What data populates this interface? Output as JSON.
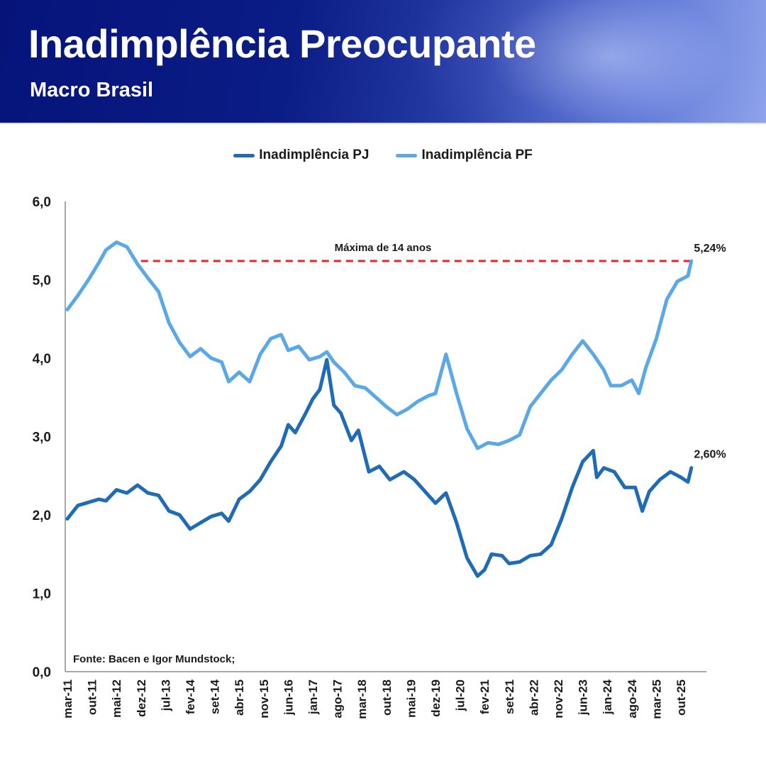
{
  "header": {
    "title": "Inadimplência Preocupante",
    "subtitle": "Macro Brasil"
  },
  "chart_data": {
    "type": "line",
    "title": "",
    "xlabel": "",
    "ylabel": "",
    "ylim": [
      0,
      6
    ],
    "y_ticks": [
      "0,0",
      "1,0",
      "2,0",
      "3,0",
      "4,0",
      "5,0",
      "6,0"
    ],
    "x_ticks": [
      "mar-11",
      "out-11",
      "mai-12",
      "dez-12",
      "jul-13",
      "fev-14",
      "set-14",
      "abr-15",
      "nov-15",
      "jun-16",
      "jan-17",
      "ago-17",
      "mar-18",
      "out-18",
      "mai-19",
      "dez-19",
      "jul-20",
      "fev-21",
      "set-21",
      "abr-22",
      "nov-22",
      "jun-23",
      "jan-24",
      "ago-24",
      "mar-25",
      "out-25"
    ],
    "grid": false,
    "legend_position": "top",
    "series": [
      {
        "name": "Inadimplência PJ",
        "color": "#1f6bb5",
        "points": [
          [
            "2011-03",
            1.95
          ],
          [
            "2011-06",
            2.12
          ],
          [
            "2011-09",
            2.16
          ],
          [
            "2011-12",
            2.2
          ],
          [
            "2012-02",
            2.18
          ],
          [
            "2012-05",
            2.32
          ],
          [
            "2012-08",
            2.28
          ],
          [
            "2012-11",
            2.38
          ],
          [
            "2013-02",
            2.28
          ],
          [
            "2013-05",
            2.25
          ],
          [
            "2013-08",
            2.05
          ],
          [
            "2013-11",
            2.0
          ],
          [
            "2014-02",
            1.82
          ],
          [
            "2014-05",
            1.9
          ],
          [
            "2014-08",
            1.98
          ],
          [
            "2014-11",
            2.02
          ],
          [
            "2015-01",
            1.92
          ],
          [
            "2015-04",
            2.2
          ],
          [
            "2015-07",
            2.3
          ],
          [
            "2015-10",
            2.45
          ],
          [
            "2016-01",
            2.68
          ],
          [
            "2016-04",
            2.88
          ],
          [
            "2016-06",
            3.15
          ],
          [
            "2016-08",
            3.05
          ],
          [
            "2016-11",
            3.3
          ],
          [
            "2017-01",
            3.48
          ],
          [
            "2017-03",
            3.6
          ],
          [
            "2017-05",
            3.98
          ],
          [
            "2017-07",
            3.4
          ],
          [
            "2017-09",
            3.3
          ],
          [
            "2017-12",
            2.95
          ],
          [
            "2018-02",
            3.08
          ],
          [
            "2018-05",
            2.55
          ],
          [
            "2018-08",
            2.62
          ],
          [
            "2018-11",
            2.45
          ],
          [
            "2019-03",
            2.55
          ],
          [
            "2019-06",
            2.45
          ],
          [
            "2019-09",
            2.3
          ],
          [
            "2019-12",
            2.15
          ],
          [
            "2020-03",
            2.28
          ],
          [
            "2020-06",
            1.9
          ],
          [
            "2020-09",
            1.45
          ],
          [
            "2020-12",
            1.22
          ],
          [
            "2021-02",
            1.3
          ],
          [
            "2021-04",
            1.5
          ],
          [
            "2021-07",
            1.48
          ],
          [
            "2021-09",
            1.38
          ],
          [
            "2021-12",
            1.4
          ],
          [
            "2022-03",
            1.48
          ],
          [
            "2022-06",
            1.5
          ],
          [
            "2022-09",
            1.62
          ],
          [
            "2022-12",
            1.95
          ],
          [
            "2023-03",
            2.35
          ],
          [
            "2023-06",
            2.68
          ],
          [
            "2023-09",
            2.82
          ],
          [
            "2023-10",
            2.48
          ],
          [
            "2023-12",
            2.6
          ],
          [
            "2024-03",
            2.55
          ],
          [
            "2024-06",
            2.35
          ],
          [
            "2024-09",
            2.35
          ],
          [
            "2024-11",
            2.05
          ],
          [
            "2025-01",
            2.3
          ],
          [
            "2025-04",
            2.45
          ],
          [
            "2025-07",
            2.55
          ],
          [
            "2025-10",
            2.48
          ],
          [
            "2025-12",
            2.42
          ],
          [
            "2026-01",
            2.6
          ]
        ]
      },
      {
        "name": "Inadimplência PF",
        "color": "#5aa8e8",
        "points": [
          [
            "2011-03",
            4.62
          ],
          [
            "2011-06",
            4.8
          ],
          [
            "2011-09",
            5.0
          ],
          [
            "2011-12",
            5.22
          ],
          [
            "2012-02",
            5.38
          ],
          [
            "2012-05",
            5.48
          ],
          [
            "2012-08",
            5.42
          ],
          [
            "2012-11",
            5.2
          ],
          [
            "2013-02",
            5.02
          ],
          [
            "2013-05",
            4.85
          ],
          [
            "2013-08",
            4.45
          ],
          [
            "2013-11",
            4.2
          ],
          [
            "2014-02",
            4.02
          ],
          [
            "2014-05",
            4.12
          ],
          [
            "2014-08",
            4.0
          ],
          [
            "2014-11",
            3.95
          ],
          [
            "2015-01",
            3.7
          ],
          [
            "2015-04",
            3.82
          ],
          [
            "2015-07",
            3.7
          ],
          [
            "2015-10",
            4.05
          ],
          [
            "2016-01",
            4.25
          ],
          [
            "2016-04",
            4.3
          ],
          [
            "2016-06",
            4.1
          ],
          [
            "2016-09",
            4.15
          ],
          [
            "2016-12",
            3.98
          ],
          [
            "2017-03",
            4.02
          ],
          [
            "2017-05",
            4.08
          ],
          [
            "2017-07",
            3.95
          ],
          [
            "2017-10",
            3.82
          ],
          [
            "2018-01",
            3.65
          ],
          [
            "2018-04",
            3.62
          ],
          [
            "2018-07",
            3.5
          ],
          [
            "2018-10",
            3.38
          ],
          [
            "2019-01",
            3.28
          ],
          [
            "2019-04",
            3.35
          ],
          [
            "2019-07",
            3.45
          ],
          [
            "2019-10",
            3.52
          ],
          [
            "2019-12",
            3.55
          ],
          [
            "2020-03",
            4.05
          ],
          [
            "2020-06",
            3.55
          ],
          [
            "2020-09",
            3.1
          ],
          [
            "2020-12",
            2.85
          ],
          [
            "2021-03",
            2.92
          ],
          [
            "2021-06",
            2.9
          ],
          [
            "2021-09",
            2.95
          ],
          [
            "2021-12",
            3.02
          ],
          [
            "2022-03",
            3.38
          ],
          [
            "2022-06",
            3.55
          ],
          [
            "2022-09",
            3.72
          ],
          [
            "2022-12",
            3.85
          ],
          [
            "2023-03",
            4.05
          ],
          [
            "2023-06",
            4.22
          ],
          [
            "2023-09",
            4.05
          ],
          [
            "2023-12",
            3.85
          ],
          [
            "2024-02",
            3.65
          ],
          [
            "2024-05",
            3.65
          ],
          [
            "2024-08",
            3.72
          ],
          [
            "2024-10",
            3.55
          ],
          [
            "2024-12",
            3.88
          ],
          [
            "2025-03",
            4.25
          ],
          [
            "2025-06",
            4.75
          ],
          [
            "2025-09",
            4.98
          ],
          [
            "2025-12",
            5.05
          ],
          [
            "2026-01",
            5.24
          ]
        ]
      }
    ],
    "annotations": {
      "max_label": "Máxima de 14 anos",
      "max_value": 5.24,
      "max_line_start": "2012-12",
      "max_line_color": "#e32626",
      "pf_last_label": "5,24%",
      "pj_last_label": "2,60%",
      "source": "Fonte: Bacen e Igor Mundstock;"
    }
  }
}
